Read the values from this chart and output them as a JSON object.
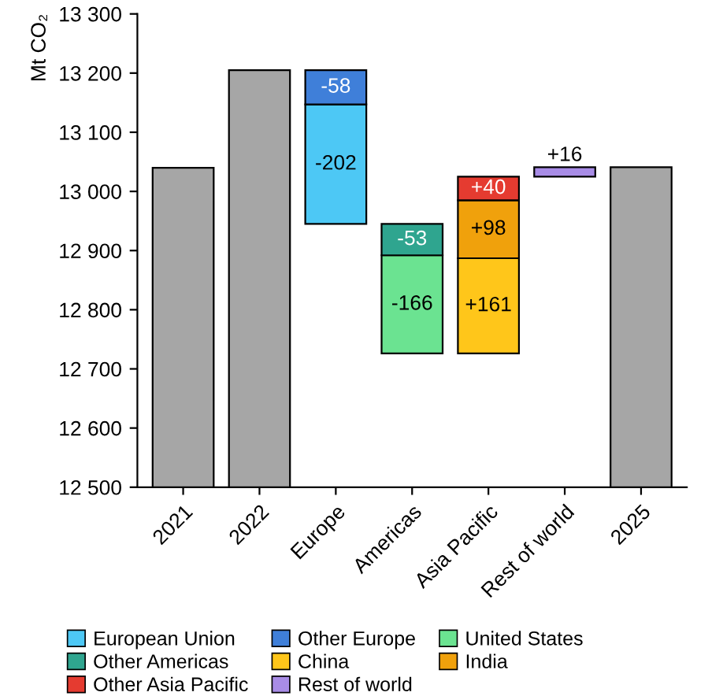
{
  "chart_data": {
    "type": "bar",
    "ylabel": "Mt CO₂",
    "categories": [
      "2021",
      "2022",
      "Europe",
      "Americas",
      "Asia Pacific",
      "Rest of world",
      "2025"
    ],
    "ylim": [
      12500,
      13300
    ],
    "yticks": [
      {
        "value": 12500,
        "label": "12 500"
      },
      {
        "value": 12600,
        "label": "12 600"
      },
      {
        "value": 12700,
        "label": "12 700"
      },
      {
        "value": 12800,
        "label": "12 800"
      },
      {
        "value": 12900,
        "label": "12 900"
      },
      {
        "value": 13000,
        "label": "13 000"
      },
      {
        "value": 13100,
        "label": "13 100"
      },
      {
        "value": 13200,
        "label": "13 200"
      },
      {
        "value": 13300,
        "label": "13 300"
      }
    ],
    "grid": false,
    "legend": "bottom",
    "series": [
      {
        "color": "#a6a6a6",
        "values": [
          13040,
          13205,
          null,
          null,
          null,
          null,
          13041
        ]
      },
      {
        "name": "European Union",
        "color": "#4dc8f5",
        "values": [
          null,
          null,
          -202,
          null,
          null,
          null,
          null
        ],
        "base": [
          null,
          null,
          13147,
          null,
          null,
          null,
          null
        ],
        "value_labels": [
          null,
          null,
          "-202",
          null,
          null,
          null,
          null
        ]
      },
      {
        "name": "Other Europe",
        "color": "#3f7fd9",
        "values": [
          null,
          null,
          -58,
          null,
          null,
          null,
          null
        ],
        "base": [
          null,
          null,
          13205,
          null,
          null,
          null,
          null
        ],
        "value_labels": [
          null,
          null,
          "-58",
          null,
          null,
          null,
          null
        ]
      },
      {
        "name": "United States",
        "color": "#6be391",
        "values": [
          null,
          null,
          null,
          -166,
          null,
          null,
          null
        ],
        "base": [
          null,
          null,
          null,
          12892,
          null,
          null,
          null
        ],
        "value_labels": [
          null,
          null,
          null,
          "-166",
          null,
          null,
          null
        ]
      },
      {
        "name": "Other Americas",
        "color": "#2fa58f",
        "values": [
          null,
          null,
          null,
          -53,
          null,
          null,
          null
        ],
        "base": [
          null,
          null,
          null,
          12945,
          null,
          null,
          null
        ],
        "value_labels": [
          null,
          null,
          null,
          "-53",
          null,
          null,
          null
        ]
      },
      {
        "name": "China",
        "color": "#ffc61a",
        "values": [
          null,
          null,
          null,
          null,
          161,
          null,
          null
        ],
        "base": [
          null,
          null,
          null,
          null,
          12726,
          null,
          null
        ],
        "value_labels": [
          null,
          null,
          null,
          null,
          "+161",
          null,
          null
        ]
      },
      {
        "name": "India",
        "color": "#f0a10c",
        "values": [
          null,
          null,
          null,
          null,
          98,
          null,
          null
        ],
        "base": [
          null,
          null,
          null,
          null,
          12887,
          null,
          null
        ],
        "value_labels": [
          null,
          null,
          null,
          null,
          "+98",
          null,
          null
        ]
      },
      {
        "name": "Other Asia Pacific",
        "color": "#e53b30",
        "values": [
          null,
          null,
          null,
          null,
          40,
          null,
          null
        ],
        "base": [
          null,
          null,
          null,
          null,
          12985,
          null,
          null
        ],
        "value_labels": [
          null,
          null,
          null,
          null,
          "+40",
          null,
          null
        ]
      },
      {
        "name": "Rest of world",
        "color": "#a88ce6",
        "values": [
          null,
          null,
          null,
          null,
          null,
          16,
          null
        ],
        "base": [
          null,
          null,
          null,
          null,
          null,
          13025,
          null
        ],
        "value_labels": [
          null,
          null,
          null,
          null,
          null,
          "+16",
          null
        ]
      }
    ]
  }
}
